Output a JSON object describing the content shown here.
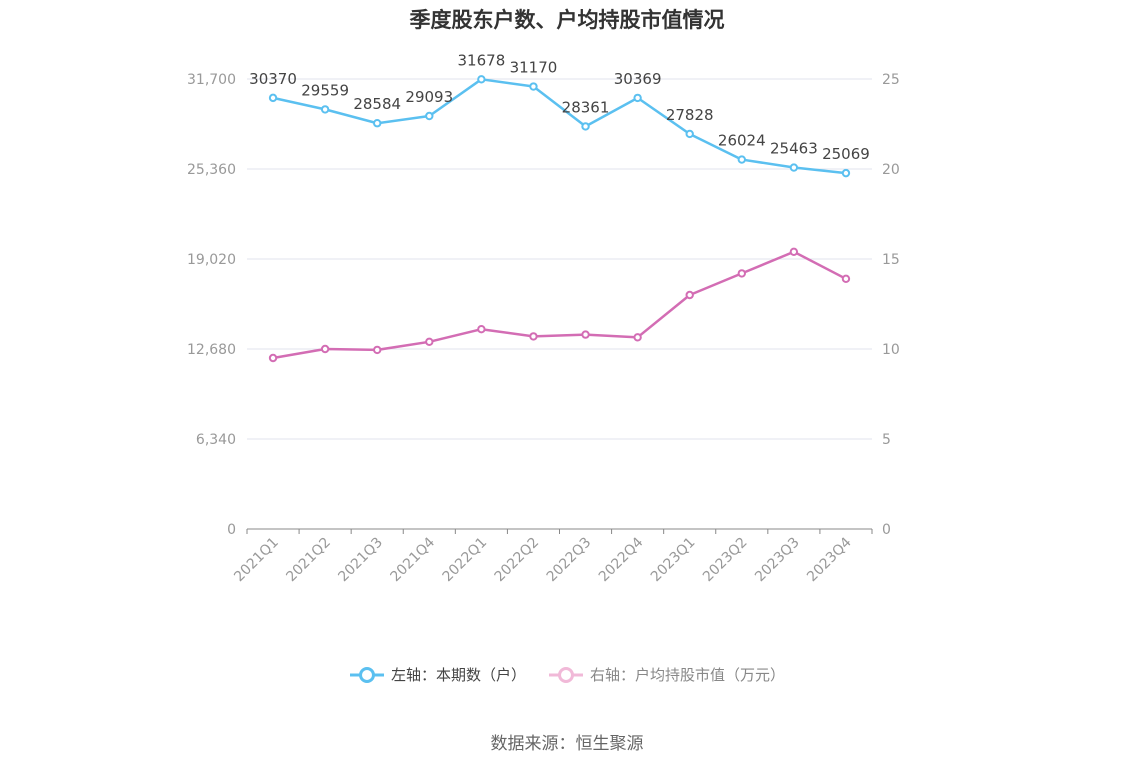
{
  "chart_data": {
    "type": "line",
    "title": "季度股东户数、户均持股市值情况",
    "categories": [
      "2021Q1",
      "2021Q2",
      "2021Q3",
      "2021Q4",
      "2022Q1",
      "2022Q2",
      "2022Q3",
      "2022Q4",
      "2023Q1",
      "2023Q2",
      "2023Q3",
      "2023Q4"
    ],
    "left_axis": {
      "ylim": [
        0,
        31700
      ],
      "ticks": [
        "0",
        "6,340",
        "12,680",
        "19,020",
        "25,360",
        "31,700"
      ]
    },
    "right_axis": {
      "ylim": [
        0,
        25
      ],
      "ticks": [
        "0",
        "5",
        "10",
        "15",
        "20",
        "25"
      ]
    },
    "series": [
      {
        "name": "左轴：本期数（户）",
        "axis": "left",
        "color": "#5bc0f0",
        "values": [
          30370,
          29559,
          28584,
          29093,
          31678,
          31170,
          28361,
          30369,
          27828,
          26024,
          25463,
          25069
        ],
        "labels_shown": true
      },
      {
        "name": "右轴：户均持股市值（万元）",
        "axis": "right",
        "color": "#d36db4",
        "values": [
          9.5,
          10.0,
          9.95,
          10.4,
          11.1,
          10.7,
          10.8,
          10.65,
          13.0,
          14.2,
          15.4,
          13.9
        ],
        "labels_shown": false
      }
    ],
    "grid": true,
    "legend_position": "bottom-center"
  },
  "legend": {
    "left_label": "左轴：本期数（户）",
    "right_label": "右轴：户均持股市值（万元）"
  },
  "source": "数据来源：恒生聚源"
}
